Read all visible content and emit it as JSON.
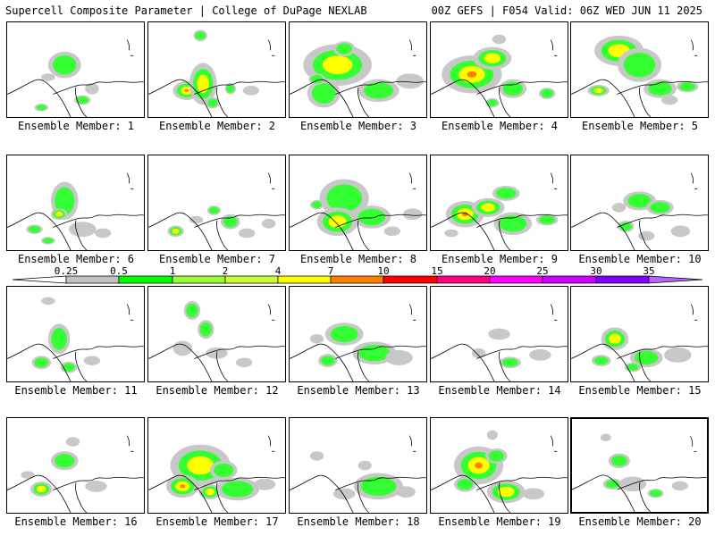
{
  "header": {
    "left": "Supercell Composite Parameter | College of DuPage NEXLAB",
    "right": "00Z GEFS | F054 Valid: 06Z WED JUN 11 2025"
  },
  "member_prefix": "Ensemble Member:",
  "members": [
    {
      "id": "1",
      "blobs": [
        [
          0.42,
          0.45,
          0.12,
          0.14,
          1
        ],
        [
          0.55,
          0.82,
          0.06,
          0.05,
          1
        ],
        [
          0.25,
          0.9,
          0.05,
          0.04,
          1
        ],
        [
          0.3,
          0.58,
          0.05,
          0.04,
          0
        ],
        [
          0.62,
          0.7,
          0.05,
          0.06,
          0
        ]
      ]
    },
    {
      "id": "2",
      "blobs": [
        [
          0.28,
          0.72,
          0.1,
          0.1,
          3
        ],
        [
          0.4,
          0.65,
          0.1,
          0.22,
          2
        ],
        [
          0.47,
          0.85,
          0.05,
          0.06,
          1
        ],
        [
          0.6,
          0.7,
          0.04,
          0.06,
          1
        ],
        [
          0.38,
          0.14,
          0.05,
          0.06,
          1
        ],
        [
          0.75,
          0.72,
          0.06,
          0.05,
          0
        ]
      ]
    },
    {
      "id": "3",
      "blobs": [
        [
          0.35,
          0.45,
          0.25,
          0.22,
          2
        ],
        [
          0.25,
          0.75,
          0.12,
          0.15,
          1
        ],
        [
          0.4,
          0.28,
          0.08,
          0.08,
          1
        ],
        [
          0.65,
          0.72,
          0.15,
          0.12,
          1
        ],
        [
          0.88,
          0.62,
          0.1,
          0.08,
          0
        ],
        [
          0.2,
          0.6,
          0.06,
          0.06,
          1
        ]
      ]
    },
    {
      "id": "4",
      "blobs": [
        [
          0.3,
          0.55,
          0.22,
          0.2,
          3
        ],
        [
          0.45,
          0.38,
          0.14,
          0.12,
          2
        ],
        [
          0.6,
          0.7,
          0.1,
          0.1,
          1
        ],
        [
          0.85,
          0.75,
          0.06,
          0.06,
          1
        ],
        [
          0.5,
          0.18,
          0.05,
          0.05,
          0
        ],
        [
          0.45,
          0.85,
          0.05,
          0.05,
          1
        ]
      ]
    },
    {
      "id": "5",
      "blobs": [
        [
          0.35,
          0.3,
          0.18,
          0.16,
          2
        ],
        [
          0.5,
          0.45,
          0.16,
          0.18,
          1
        ],
        [
          0.2,
          0.72,
          0.08,
          0.06,
          2
        ],
        [
          0.65,
          0.7,
          0.12,
          0.1,
          1
        ],
        [
          0.85,
          0.68,
          0.08,
          0.06,
          1
        ],
        [
          0.72,
          0.82,
          0.06,
          0.05,
          0
        ]
      ]
    },
    {
      "id": "6",
      "blobs": [
        [
          0.42,
          0.48,
          0.1,
          0.2,
          1
        ],
        [
          0.38,
          0.62,
          0.06,
          0.06,
          2
        ],
        [
          0.55,
          0.78,
          0.1,
          0.08,
          0
        ],
        [
          0.2,
          0.78,
          0.06,
          0.05,
          1
        ],
        [
          0.3,
          0.9,
          0.05,
          0.04,
          1
        ],
        [
          0.7,
          0.82,
          0.06,
          0.05,
          0
        ]
      ]
    },
    {
      "id": "7",
      "blobs": [
        [
          0.2,
          0.8,
          0.06,
          0.06,
          2
        ],
        [
          0.48,
          0.58,
          0.05,
          0.05,
          1
        ],
        [
          0.6,
          0.7,
          0.07,
          0.08,
          1
        ],
        [
          0.72,
          0.82,
          0.06,
          0.05,
          0
        ],
        [
          0.35,
          0.68,
          0.05,
          0.04,
          0
        ],
        [
          0.88,
          0.72,
          0.05,
          0.05,
          0
        ]
      ]
    },
    {
      "id": "8",
      "blobs": [
        [
          0.4,
          0.45,
          0.18,
          0.2,
          1
        ],
        [
          0.35,
          0.7,
          0.15,
          0.15,
          2
        ],
        [
          0.6,
          0.65,
          0.14,
          0.12,
          1
        ],
        [
          0.9,
          0.62,
          0.07,
          0.06,
          0
        ],
        [
          0.75,
          0.8,
          0.06,
          0.05,
          0
        ],
        [
          0.2,
          0.52,
          0.05,
          0.05,
          1
        ]
      ]
    },
    {
      "id": "9",
      "blobs": [
        [
          0.25,
          0.62,
          0.14,
          0.14,
          3
        ],
        [
          0.42,
          0.55,
          0.12,
          0.1,
          2
        ],
        [
          0.55,
          0.4,
          0.1,
          0.08,
          1
        ],
        [
          0.6,
          0.72,
          0.14,
          0.12,
          1
        ],
        [
          0.85,
          0.68,
          0.08,
          0.06,
          1
        ],
        [
          0.15,
          0.82,
          0.05,
          0.04,
          0
        ]
      ]
    },
    {
      "id": "10",
      "blobs": [
        [
          0.5,
          0.48,
          0.12,
          0.1,
          1
        ],
        [
          0.65,
          0.55,
          0.1,
          0.08,
          1
        ],
        [
          0.4,
          0.75,
          0.06,
          0.06,
          1
        ],
        [
          0.55,
          0.85,
          0.06,
          0.05,
          0
        ],
        [
          0.8,
          0.8,
          0.07,
          0.06,
          0
        ],
        [
          0.35,
          0.55,
          0.05,
          0.05,
          0
        ]
      ]
    },
    {
      "id": "11",
      "blobs": [
        [
          0.38,
          0.55,
          0.08,
          0.16,
          1
        ],
        [
          0.25,
          0.8,
          0.07,
          0.07,
          1
        ],
        [
          0.45,
          0.85,
          0.06,
          0.06,
          1
        ],
        [
          0.62,
          0.78,
          0.06,
          0.05,
          0
        ],
        [
          0.3,
          0.15,
          0.05,
          0.04,
          0
        ]
      ]
    },
    {
      "id": "12",
      "blobs": [
        [
          0.32,
          0.25,
          0.06,
          0.1,
          1
        ],
        [
          0.42,
          0.45,
          0.06,
          0.1,
          1
        ],
        [
          0.25,
          0.65,
          0.07,
          0.08,
          0
        ],
        [
          0.5,
          0.7,
          0.08,
          0.06,
          0
        ],
        [
          0.7,
          0.8,
          0.06,
          0.05,
          0
        ]
      ]
    },
    {
      "id": "13",
      "blobs": [
        [
          0.4,
          0.5,
          0.14,
          0.12,
          1
        ],
        [
          0.28,
          0.78,
          0.07,
          0.07,
          1
        ],
        [
          0.62,
          0.7,
          0.16,
          0.12,
          1
        ],
        [
          0.8,
          0.75,
          0.1,
          0.08,
          0
        ],
        [
          0.2,
          0.55,
          0.05,
          0.05,
          0
        ]
      ]
    },
    {
      "id": "14",
      "blobs": [
        [
          0.5,
          0.5,
          0.08,
          0.06,
          0
        ],
        [
          0.58,
          0.8,
          0.08,
          0.06,
          1
        ],
        [
          0.8,
          0.72,
          0.08,
          0.06,
          0
        ],
        [
          0.35,
          0.7,
          0.05,
          0.05,
          0
        ]
      ]
    },
    {
      "id": "15",
      "blobs": [
        [
          0.32,
          0.55,
          0.1,
          0.12,
          2
        ],
        [
          0.22,
          0.78,
          0.07,
          0.06,
          1
        ],
        [
          0.55,
          0.75,
          0.12,
          0.1,
          1
        ],
        [
          0.78,
          0.72,
          0.1,
          0.08,
          0
        ],
        [
          0.45,
          0.85,
          0.06,
          0.05,
          1
        ]
      ]
    },
    {
      "id": "16",
      "blobs": [
        [
          0.42,
          0.45,
          0.1,
          0.1,
          1
        ],
        [
          0.25,
          0.75,
          0.08,
          0.08,
          2
        ],
        [
          0.48,
          0.25,
          0.05,
          0.05,
          0
        ],
        [
          0.65,
          0.72,
          0.08,
          0.06,
          0
        ],
        [
          0.15,
          0.6,
          0.05,
          0.04,
          0
        ]
      ]
    },
    {
      "id": "17",
      "blobs": [
        [
          0.38,
          0.5,
          0.22,
          0.22,
          2
        ],
        [
          0.25,
          0.72,
          0.12,
          0.12,
          3
        ],
        [
          0.55,
          0.55,
          0.1,
          0.1,
          1
        ],
        [
          0.65,
          0.75,
          0.16,
          0.12,
          1
        ],
        [
          0.45,
          0.78,
          0.08,
          0.08,
          2
        ],
        [
          0.85,
          0.7,
          0.08,
          0.06,
          0
        ]
      ]
    },
    {
      "id": "18",
      "blobs": [
        [
          0.65,
          0.72,
          0.18,
          0.14,
          1
        ],
        [
          0.4,
          0.8,
          0.08,
          0.06,
          0
        ],
        [
          0.2,
          0.4,
          0.05,
          0.05,
          0
        ],
        [
          0.85,
          0.78,
          0.07,
          0.06,
          0
        ],
        [
          0.55,
          0.5,
          0.05,
          0.05,
          0
        ]
      ]
    },
    {
      "id": "19",
      "blobs": [
        [
          0.35,
          0.5,
          0.18,
          0.2,
          3
        ],
        [
          0.55,
          0.78,
          0.14,
          0.12,
          2
        ],
        [
          0.48,
          0.4,
          0.08,
          0.08,
          1
        ],
        [
          0.25,
          0.7,
          0.08,
          0.08,
          1
        ],
        [
          0.75,
          0.8,
          0.08,
          0.06,
          0
        ],
        [
          0.45,
          0.18,
          0.04,
          0.05,
          0
        ]
      ]
    },
    {
      "id": "20",
      "blobs": [
        [
          0.35,
          0.45,
          0.08,
          0.08,
          1
        ],
        [
          0.3,
          0.7,
          0.07,
          0.06,
          1
        ],
        [
          0.45,
          0.7,
          0.1,
          0.08,
          0
        ],
        [
          0.62,
          0.8,
          0.06,
          0.05,
          1
        ],
        [
          0.8,
          0.72,
          0.06,
          0.05,
          0
        ],
        [
          0.25,
          0.2,
          0.04,
          0.04,
          0
        ]
      ]
    }
  ],
  "selected_member": "20",
  "colorbar": {
    "labels": [
      "0.25",
      "0.5",
      "1",
      "2",
      "4",
      "7",
      "10",
      "15",
      "20",
      "25",
      "30",
      "35"
    ],
    "colors": [
      "#ffffff",
      "#c0c0c0",
      "#00ff00",
      "#99ff33",
      "#ccff33",
      "#ffff00",
      "#ff8000",
      "#ff0000",
      "#ff0080",
      "#ff00ff",
      "#cc00ff",
      "#8000ff",
      "#b366ff",
      "#00ffff"
    ]
  },
  "field_colors": [
    "#c8c8c8",
    "#33ff33",
    "#ffff00",
    "#ff7f00"
  ]
}
